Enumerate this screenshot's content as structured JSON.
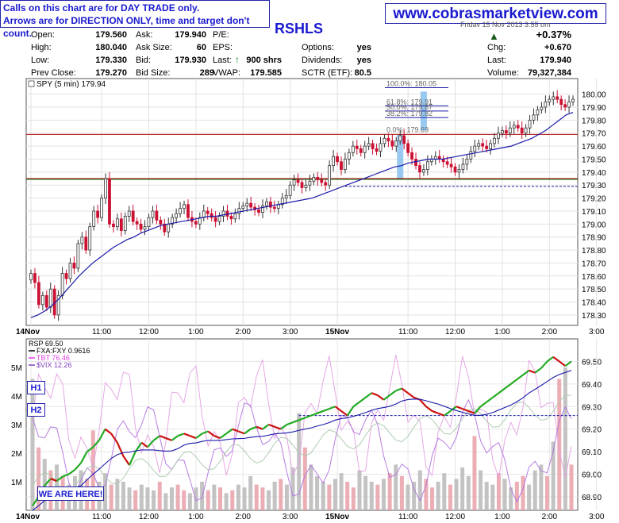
{
  "notes": {
    "line1": "Calls on this chart are for DAY TRADE only.",
    "line2": "Arrows are for DIRECTION ONLY, time and target don't count."
  },
  "website": "www.cobrasmarketview.com",
  "symbol": "RSHLS",
  "date_line": "Friday 15 Nov 2013 3:55 pm",
  "quote": {
    "open_label": "Open:",
    "open": "179.560",
    "high_label": "High:",
    "high": "180.040",
    "low_label": "Low:",
    "low": "179.330",
    "prev_label": "Prev Close:",
    "prev": "179.270",
    "ask_label": "Ask:",
    "ask": "179.940",
    "asksize_label": "Ask Size:",
    "asksize": "60",
    "bid_label": "Bid:",
    "bid": "179.930",
    "bidsize_label": "Bid Size:",
    "bidsize": "289",
    "pe_label": "P/E:",
    "pe": "",
    "eps_label": "EPS:",
    "eps": "",
    "last_label": "Last:",
    "last_shares": "900 shrs",
    "vwap_label": "VWAP:",
    "vwap": "179.585",
    "options_label": "Options:",
    "options": "yes",
    "dividends_label": "Dividends:",
    "dividends": "yes",
    "sctr_label": "SCTR (ETF):",
    "sctr": "80.5",
    "pct_change": "+0.37%",
    "chg_label": "Chg:",
    "chg": "+0.670",
    "last2_label": "Last:",
    "last2": "179.940",
    "volume_label": "Volume:",
    "volume": "79,327,384"
  },
  "colors": {
    "up": "#333333",
    "down": "#cc1133",
    "ma": "#1a1aa8",
    "brand": "#1a1ad0",
    "fib": "#1a1aa8",
    "hline_red": "#b01010",
    "hline_green": "#107010",
    "rsp_up": "#22aa22",
    "rsp_down": "#cc1111",
    "rsp_flat": "#2222cc"
  },
  "fib": [
    {
      "label": "100.0%: 180.05",
      "value": 180.05
    },
    {
      "label": "61.8%: 179.91",
      "value": 179.91
    },
    {
      "label": "50.0%: 179.87",
      "value": 179.87
    },
    {
      "label": "38.2%: 179.82",
      "value": 179.82
    },
    {
      "label": "0.0%: 179.69",
      "value": 179.69
    }
  ],
  "tags": {
    "h1": "H1",
    "h2": "H2",
    "here": "WE ARE HERE!"
  },
  "chart_data": [
    {
      "type": "candlestick",
      "legend": "SPY (5 min) 179.94",
      "ylim": [
        178.22,
        180.12
      ],
      "yticks": [
        178.3,
        178.4,
        178.5,
        178.6,
        178.7,
        178.8,
        178.9,
        179.0,
        179.1,
        179.2,
        179.3,
        179.4,
        179.5,
        179.6,
        179.7,
        179.8,
        179.9,
        180.0
      ],
      "x_labels": [
        {
          "label": "14Nov",
          "at": 0
        },
        {
          "label": "11:00",
          "at": 18
        },
        {
          "label": "12:00",
          "at": 30
        },
        {
          "label": "1:00",
          "at": 42
        },
        {
          "label": "2:00",
          "at": 54
        },
        {
          "label": "3:00",
          "at": 66
        },
        {
          "label": "15Nov",
          "at": 78
        },
        {
          "label": "11:00",
          "at": 96
        },
        {
          "label": "12:00",
          "at": 108
        },
        {
          "label": "1:00",
          "at": 120
        },
        {
          "label": "2:00",
          "at": 132
        },
        {
          "label": "3:00",
          "at": 144
        }
      ],
      "levels": [
        {
          "value": 179.69,
          "color": "hline_red"
        },
        {
          "value": 179.35,
          "color": "hline_red"
        },
        {
          "value": 179.35,
          "color": "hline_green"
        },
        {
          "value": 179.29,
          "color": "fib",
          "dashed": true
        }
      ],
      "highlights": [
        {
          "at": 94,
          "from": 179.35,
          "to": 179.69
        },
        {
          "at": 100,
          "from": 179.72,
          "to": 180.02
        }
      ],
      "closes": [
        178.62,
        178.55,
        178.38,
        178.45,
        178.36,
        178.5,
        178.3,
        178.45,
        178.62,
        178.58,
        178.7,
        178.66,
        178.85,
        178.9,
        178.8,
        178.98,
        179.1,
        179.05,
        179.2,
        179.35,
        179.0,
        178.98,
        179.04,
        178.95,
        179.06,
        179.1,
        179.02,
        179.0,
        178.96,
        178.98,
        179.05,
        179.1,
        179.03,
        179.0,
        178.94,
        179.0,
        179.05,
        179.08,
        179.12,
        179.15,
        179.05,
        179.02,
        179.0,
        179.05,
        179.1,
        179.08,
        179.05,
        179.02,
        179.06,
        179.1,
        179.06,
        179.04,
        179.08,
        179.12,
        179.14,
        179.16,
        179.13,
        179.11,
        179.09,
        179.14,
        179.17,
        179.13,
        179.12,
        179.15,
        179.2,
        179.22,
        179.3,
        179.34,
        179.32,
        179.28,
        179.3,
        179.33,
        179.36,
        179.34,
        179.32,
        179.3,
        179.45,
        179.52,
        179.48,
        179.42,
        179.5,
        179.55,
        179.6,
        179.58,
        179.55,
        179.6,
        179.62,
        179.58,
        179.56,
        179.62,
        179.66,
        179.64,
        179.6,
        179.64,
        179.68,
        179.62,
        179.55,
        179.5,
        179.45,
        179.4,
        179.42,
        179.48,
        179.5,
        179.52,
        179.5,
        179.48,
        179.46,
        179.44,
        179.4,
        179.42,
        179.46,
        179.5,
        179.56,
        179.6,
        179.62,
        179.6,
        179.58,
        179.62,
        179.66,
        179.7,
        179.72,
        179.7,
        179.74,
        179.76,
        179.74,
        179.7,
        179.74,
        179.8,
        179.84,
        179.88,
        179.9,
        179.94,
        179.96,
        179.98,
        179.96,
        179.92,
        179.9,
        179.94,
        179.96
      ],
      "ma": [
        178.28,
        178.3,
        178.33,
        178.37,
        178.42,
        178.48,
        178.54,
        178.6,
        178.65,
        178.7,
        178.74,
        178.78,
        178.82,
        178.85,
        178.88,
        178.9,
        178.93,
        178.95,
        178.97,
        178.99,
        179.0,
        179.01,
        179.02,
        179.03,
        179.04,
        179.05,
        179.06,
        179.06,
        179.07,
        179.08,
        179.09,
        179.1,
        179.11,
        179.12,
        179.13,
        179.14,
        179.15,
        179.16,
        179.17,
        179.18,
        179.19,
        179.2,
        179.22,
        179.24,
        179.26,
        179.28,
        179.3,
        179.32,
        179.34,
        179.36,
        179.38,
        179.4,
        179.42,
        179.44,
        179.45,
        179.47,
        179.48,
        179.49,
        179.5,
        179.5,
        179.5,
        179.51,
        179.52,
        179.53,
        179.54,
        179.55,
        179.56,
        179.57,
        179.58,
        179.59,
        179.6,
        179.62,
        179.64,
        179.66,
        179.69,
        179.72,
        179.76,
        179.8,
        179.84,
        179.86
      ]
    },
    {
      "type": "line",
      "legend": "RSP 69.50",
      "series": [
        {
          "name": "FXA:FXY 0.9616"
        },
        {
          "name": "TBT 76.46"
        },
        {
          "name": "$VIX 12.26"
        }
      ],
      "ylim": [
        68.84,
        69.6
      ],
      "yticks": [
        68.9,
        69.0,
        69.1,
        69.2,
        69.3,
        69.4,
        69.5
      ],
      "vol_ticks": [
        {
          "label": "1M",
          "value": 1
        },
        {
          "label": "2M",
          "value": 2
        },
        {
          "label": "3M",
          "value": 3
        },
        {
          "label": "4M",
          "value": 4
        },
        {
          "label": "5M",
          "value": 5
        }
      ],
      "vol_max": 6.0,
      "level": 69.26,
      "rsp_closes": [
        68.86,
        68.9,
        68.95,
        68.98,
        68.97,
        68.99,
        69.0,
        69.02,
        69.05,
        69.1,
        69.12,
        69.15,
        69.2,
        69.18,
        69.14,
        69.08,
        69.04,
        69.1,
        69.14,
        69.12,
        69.15,
        69.17,
        69.16,
        69.15,
        69.17,
        69.18,
        69.17,
        69.16,
        69.18,
        69.19,
        69.17,
        69.16,
        69.18,
        69.2,
        69.19,
        69.18,
        69.2,
        69.21,
        69.2,
        69.22,
        69.21,
        69.2,
        69.22,
        69.23,
        69.24,
        69.25,
        69.26,
        69.27,
        69.28,
        69.29,
        69.3,
        69.28,
        69.26,
        69.3,
        69.32,
        69.34,
        69.36,
        69.35,
        69.33,
        69.35,
        69.37,
        69.38,
        69.36,
        69.34,
        69.33,
        69.3,
        69.28,
        69.27,
        69.26,
        69.28,
        69.3,
        69.29,
        69.28,
        69.27,
        69.3,
        69.32,
        69.34,
        69.36,
        69.38,
        69.4,
        69.42,
        69.44,
        69.46,
        69.45,
        69.47,
        69.5,
        69.52,
        69.5,
        69.48,
        69.5
      ],
      "volume": [
        4.6,
        2.2,
        1.8,
        1.4,
        1.6,
        1.2,
        0.9,
        1.2,
        1.4,
        1.1,
        2.8,
        1.0,
        1.3,
        0.9,
        1.1,
        1.0,
        0.8,
        0.7,
        0.9,
        0.8,
        0.7,
        1.0,
        0.6,
        0.8,
        0.9,
        0.7,
        0.6,
        0.8,
        1.0,
        0.7,
        0.9,
        0.8,
        0.6,
        0.7,
        0.9,
        0.8,
        1.2,
        0.9,
        0.8,
        0.7,
        1.0,
        1.1,
        0.9,
        1.5,
        3.4,
        2.2,
        1.6,
        1.2,
        1.0,
        0.9,
        1.1,
        1.3,
        1.0,
        0.8,
        1.4,
        1.2,
        1.0,
        0.9,
        1.1,
        1.3,
        1.6,
        1.2,
        0.9,
        1.0,
        1.4,
        1.1,
        0.8,
        1.0,
        1.3,
        0.9,
        1.1,
        1.5,
        1.2,
        2.6,
        1.4,
        1.0,
        0.9,
        1.3,
        1.1,
        0.8,
        1.0,
        1.2,
        0.9,
        1.4,
        1.6,
        1.2,
        2.4,
        4.6,
        5.0,
        1.6
      ]
    }
  ]
}
